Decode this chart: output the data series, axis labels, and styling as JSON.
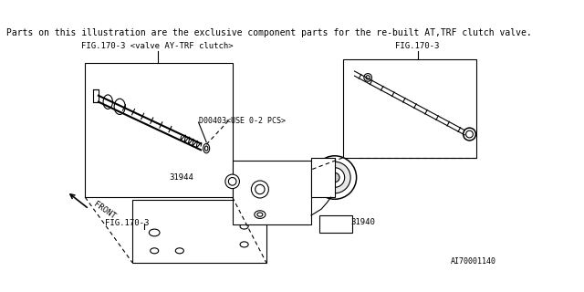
{
  "bg_color": "#ffffff",
  "line_color": "#000000",
  "text_color": "#000000",
  "header_text": "Parts on this illustration are the exclusive component parts for the re-built AT,TRF clutch valve.",
  "header_fontsize": 7.0,
  "label_fig170_3_left": "FIG.170-3 <valve AY-TRF clutch>",
  "label_fig170_3_right": "FIG.170-3",
  "label_fig170_3_bottom": "FIG.170-3",
  "label_d00403": "D00403<USE 0-2 PCS>",
  "label_31944": "31944",
  "label_31940": "31940",
  "label_front": "FRONT",
  "label_ai": "AI70001140",
  "fig_width": 6.4,
  "fig_height": 3.2,
  "dpi": 100
}
